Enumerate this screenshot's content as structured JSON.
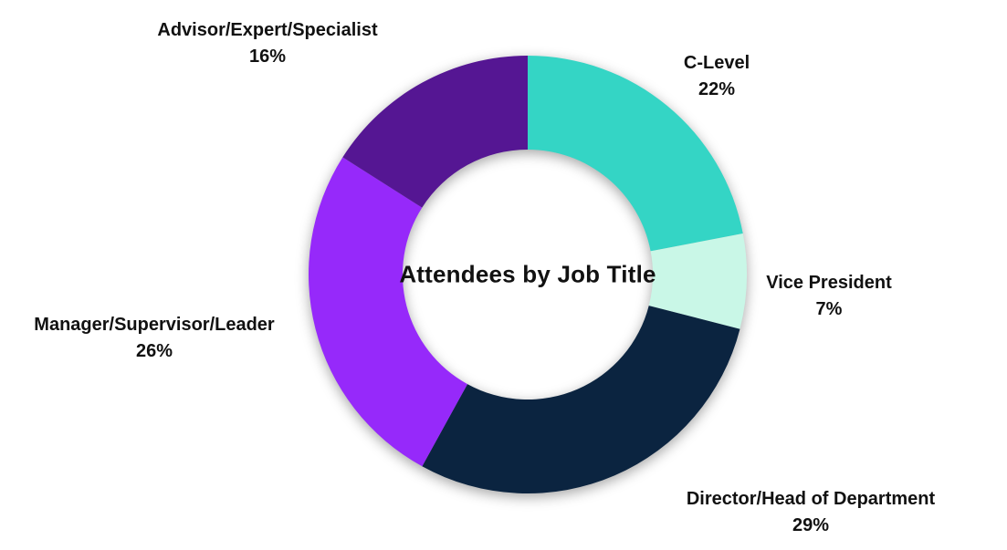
{
  "chart_data": {
    "type": "pie",
    "variant": "donut",
    "title": "Attendees by Job Title",
    "title_lines": [
      "Attendees by",
      "Job Title"
    ],
    "segments": [
      {
        "label": "C-Level",
        "value": 22,
        "pct_label": "22%",
        "color": "#34D5C5"
      },
      {
        "label": "Vice President",
        "value": 7,
        "pct_label": "7%",
        "color": "#C9F7E7"
      },
      {
        "label": "Director/Head of Department",
        "value": 29,
        "pct_label": "29%",
        "color": "#0B2440"
      },
      {
        "label": "Manager/Supervisor/Leader",
        "value": 26,
        "pct_label": "26%",
        "color": "#9629FA"
      },
      {
        "label": "Advisor/Expert/Specialist",
        "value": 16,
        "pct_label": "16%",
        "color": "#551693"
      }
    ],
    "layout": {
      "start_angle_deg": 0,
      "direction": "clockwise",
      "inner_radius_ratio": 0.571,
      "labels": "outside",
      "legend": "none",
      "background": "#FFFFFF",
      "text_color": "#111111"
    }
  }
}
